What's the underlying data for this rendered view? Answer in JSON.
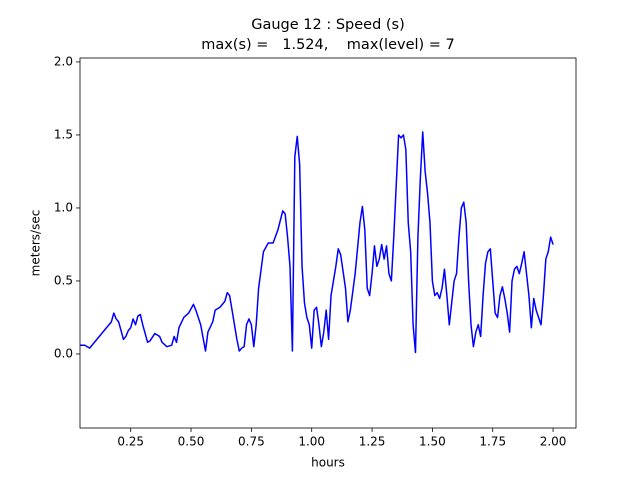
{
  "chart_data": {
    "type": "line",
    "title": "Gauge 12 : Speed (s)",
    "subtitle": "max(s) =   1.524,    max(level) = 7",
    "x_label": "hours",
    "y_label": "meters/sec",
    "x": [
      0.04,
      0.06,
      0.08,
      0.1,
      0.13,
      0.16,
      0.17,
      0.18,
      0.19,
      0.2,
      0.21,
      0.22,
      0.23,
      0.24,
      0.25,
      0.26,
      0.27,
      0.28,
      0.29,
      0.3,
      0.31,
      0.32,
      0.33,
      0.35,
      0.37,
      0.38,
      0.4,
      0.42,
      0.43,
      0.44,
      0.45,
      0.47,
      0.49,
      0.51,
      0.52,
      0.54,
      0.56,
      0.57,
      0.59,
      0.6,
      0.62,
      0.64,
      0.65,
      0.66,
      0.67,
      0.69,
      0.7,
      0.71,
      0.72,
      0.73,
      0.74,
      0.75,
      0.76,
      0.77,
      0.78,
      0.8,
      0.82,
      0.84,
      0.86,
      0.88,
      0.89,
      0.9,
      0.91,
      0.92,
      0.93,
      0.94,
      0.95,
      0.96,
      0.97,
      0.98,
      0.99,
      1.0,
      1.01,
      1.02,
      1.03,
      1.04,
      1.05,
      1.06,
      1.07,
      1.08,
      1.09,
      1.1,
      1.11,
      1.12,
      1.14,
      1.15,
      1.16,
      1.18,
      1.2,
      1.21,
      1.22,
      1.23,
      1.24,
      1.25,
      1.26,
      1.27,
      1.28,
      1.29,
      1.3,
      1.31,
      1.32,
      1.33,
      1.34,
      1.35,
      1.36,
      1.37,
      1.38,
      1.39,
      1.4,
      1.41,
      1.42,
      1.43,
      1.44,
      1.45,
      1.46,
      1.47,
      1.48,
      1.49,
      1.5,
      1.51,
      1.52,
      1.53,
      1.54,
      1.55,
      1.56,
      1.57,
      1.58,
      1.59,
      1.6,
      1.61,
      1.62,
      1.63,
      1.64,
      1.65,
      1.66,
      1.67,
      1.68,
      1.69,
      1.7,
      1.71,
      1.72,
      1.73,
      1.74,
      1.75,
      1.76,
      1.77,
      1.78,
      1.79,
      1.8,
      1.81,
      1.82,
      1.83,
      1.84,
      1.85,
      1.86,
      1.87,
      1.88,
      1.89,
      1.9,
      1.91,
      1.92,
      1.93,
      1.94,
      1.95,
      1.96,
      1.97,
      1.98,
      1.99,
      2.0
    ],
    "series": [
      {
        "color": "#0000ff",
        "values": [
          0.06,
          0.06,
          0.04,
          0.08,
          0.14,
          0.2,
          0.22,
          0.28,
          0.24,
          0.22,
          0.16,
          0.1,
          0.12,
          0.16,
          0.18,
          0.24,
          0.2,
          0.26,
          0.27,
          0.2,
          0.14,
          0.08,
          0.09,
          0.14,
          0.12,
          0.08,
          0.05,
          0.06,
          0.12,
          0.08,
          0.18,
          0.25,
          0.28,
          0.34,
          0.3,
          0.2,
          0.02,
          0.15,
          0.22,
          0.3,
          0.32,
          0.36,
          0.42,
          0.4,
          0.3,
          0.1,
          0.02,
          0.04,
          0.05,
          0.2,
          0.24,
          0.2,
          0.05,
          0.2,
          0.45,
          0.7,
          0.76,
          0.76,
          0.85,
          0.98,
          0.96,
          0.8,
          0.6,
          0.02,
          1.35,
          1.49,
          1.3,
          0.6,
          0.35,
          0.25,
          0.2,
          0.04,
          0.3,
          0.32,
          0.2,
          0.05,
          0.15,
          0.3,
          0.1,
          0.4,
          0.5,
          0.6,
          0.72,
          0.68,
          0.45,
          0.22,
          0.3,
          0.55,
          0.9,
          1.01,
          0.85,
          0.45,
          0.4,
          0.55,
          0.74,
          0.6,
          0.65,
          0.75,
          0.65,
          0.74,
          0.55,
          0.5,
          0.8,
          1.15,
          1.5,
          1.48,
          1.5,
          1.4,
          0.9,
          0.7,
          0.2,
          0.01,
          0.8,
          1.2,
          1.52,
          1.25,
          1.1,
          0.9,
          0.5,
          0.4,
          0.42,
          0.38,
          0.45,
          0.58,
          0.4,
          0.2,
          0.35,
          0.5,
          0.55,
          0.8,
          1.0,
          1.04,
          0.9,
          0.5,
          0.2,
          0.05,
          0.15,
          0.2,
          0.12,
          0.4,
          0.62,
          0.7,
          0.72,
          0.5,
          0.28,
          0.25,
          0.4,
          0.46,
          0.38,
          0.28,
          0.15,
          0.5,
          0.58,
          0.6,
          0.55,
          0.62,
          0.7,
          0.55,
          0.4,
          0.18,
          0.38,
          0.3,
          0.25,
          0.2,
          0.4,
          0.65,
          0.7,
          0.8,
          0.75
        ]
      }
    ],
    "xlim": [
      0.04,
      2.095
    ],
    "ylim": [
      -0.507,
      2.027
    ],
    "xticks": [
      0.25,
      {
        "value": 0.5,
        "label": "0.50"
      },
      0.75,
      {
        "value": 1.0,
        "label": "1.00"
      },
      1.25,
      {
        "value": 1.5,
        "label": "1.50"
      },
      1.75,
      {
        "value": 2.0,
        "label": "2.00"
      }
    ],
    "yticks": [
      {
        "value": 0,
        "label": "0.0"
      },
      0.5,
      {
        "value": 1.0,
        "label": "1.0"
      },
      1.5,
      {
        "value": 2.0,
        "label": "2.0"
      }
    ],
    "grid": false
  }
}
